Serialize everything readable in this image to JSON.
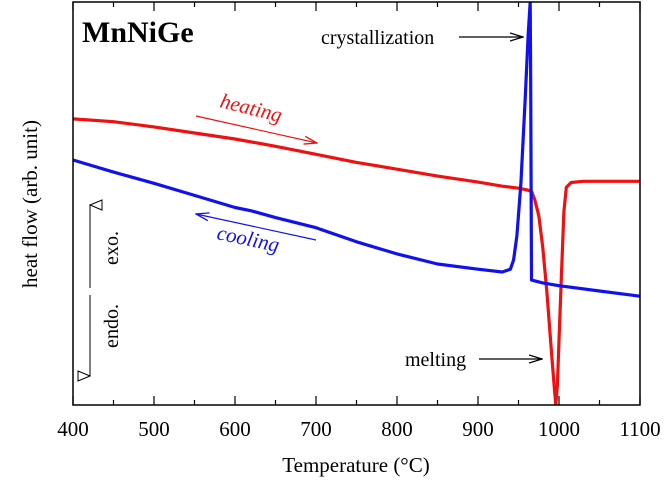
{
  "chart_data": {
    "type": "line",
    "title": "MnNiGe",
    "xlabel": "Temperature (°C)",
    "ylabel": "heat flow (arb. unit)",
    "xlim": [
      400,
      1100
    ],
    "ylim": [
      0,
      1
    ],
    "xticks": [
      400,
      500,
      600,
      700,
      800,
      900,
      1000,
      1100
    ],
    "grid": false,
    "legend": "none",
    "y_direction_labels": {
      "up": "exo.",
      "down": "endo."
    },
    "series": [
      {
        "name": "heating",
        "color": "#ee1111",
        "points": [
          [
            400,
            0.71
          ],
          [
            450,
            0.703
          ],
          [
            500,
            0.69
          ],
          [
            550,
            0.675
          ],
          [
            600,
            0.66
          ],
          [
            650,
            0.642
          ],
          [
            700,
            0.622
          ],
          [
            750,
            0.602
          ],
          [
            800,
            0.585
          ],
          [
            850,
            0.568
          ],
          [
            900,
            0.553
          ],
          [
            930,
            0.543
          ],
          [
            950,
            0.538
          ],
          [
            960,
            0.534
          ],
          [
            966,
            0.53
          ],
          [
            970,
            0.51
          ],
          [
            975,
            0.47
          ],
          [
            980,
            0.39
          ],
          [
            985,
            0.28
          ],
          [
            990,
            0.15
          ],
          [
            994,
            0.05
          ],
          [
            996,
            0.0
          ],
          [
            998,
            0.05
          ],
          [
            1000,
            0.16
          ],
          [
            1003,
            0.32
          ],
          [
            1006,
            0.48
          ],
          [
            1009,
            0.54
          ],
          [
            1015,
            0.552
          ],
          [
            1030,
            0.555
          ],
          [
            1100,
            0.555
          ]
        ]
      },
      {
        "name": "cooling",
        "color": "#1111ee",
        "points": [
          [
            1100,
            0.27
          ],
          [
            1050,
            0.283
          ],
          [
            1000,
            0.296
          ],
          [
            980,
            0.303
          ],
          [
            966,
            0.31
          ],
          [
            965.5,
            0.55
          ],
          [
            965,
            0.8
          ],
          [
            964.5,
            1.0
          ],
          [
            962,
            0.92
          ],
          [
            958,
            0.75
          ],
          [
            953,
            0.55
          ],
          [
            948,
            0.42
          ],
          [
            944,
            0.36
          ],
          [
            940,
            0.337
          ],
          [
            930,
            0.33
          ],
          [
            900,
            0.337
          ],
          [
            850,
            0.35
          ],
          [
            800,
            0.375
          ],
          [
            750,
            0.405
          ],
          [
            700,
            0.44
          ],
          [
            650,
            0.465
          ],
          [
            620,
            0.482
          ],
          [
            600,
            0.49
          ],
          [
            550,
            0.52
          ],
          [
            500,
            0.55
          ],
          [
            450,
            0.578
          ],
          [
            400,
            0.608
          ]
        ]
      }
    ],
    "annotations": [
      {
        "text": "crystallization",
        "x": 965,
        "y": 0.915
      },
      {
        "text": "melting",
        "x": 996,
        "y": 0.105
      },
      {
        "text": "heating",
        "x": 610,
        "y": 0.71
      },
      {
        "text": "cooling",
        "x": 610,
        "y": 0.415
      }
    ]
  }
}
